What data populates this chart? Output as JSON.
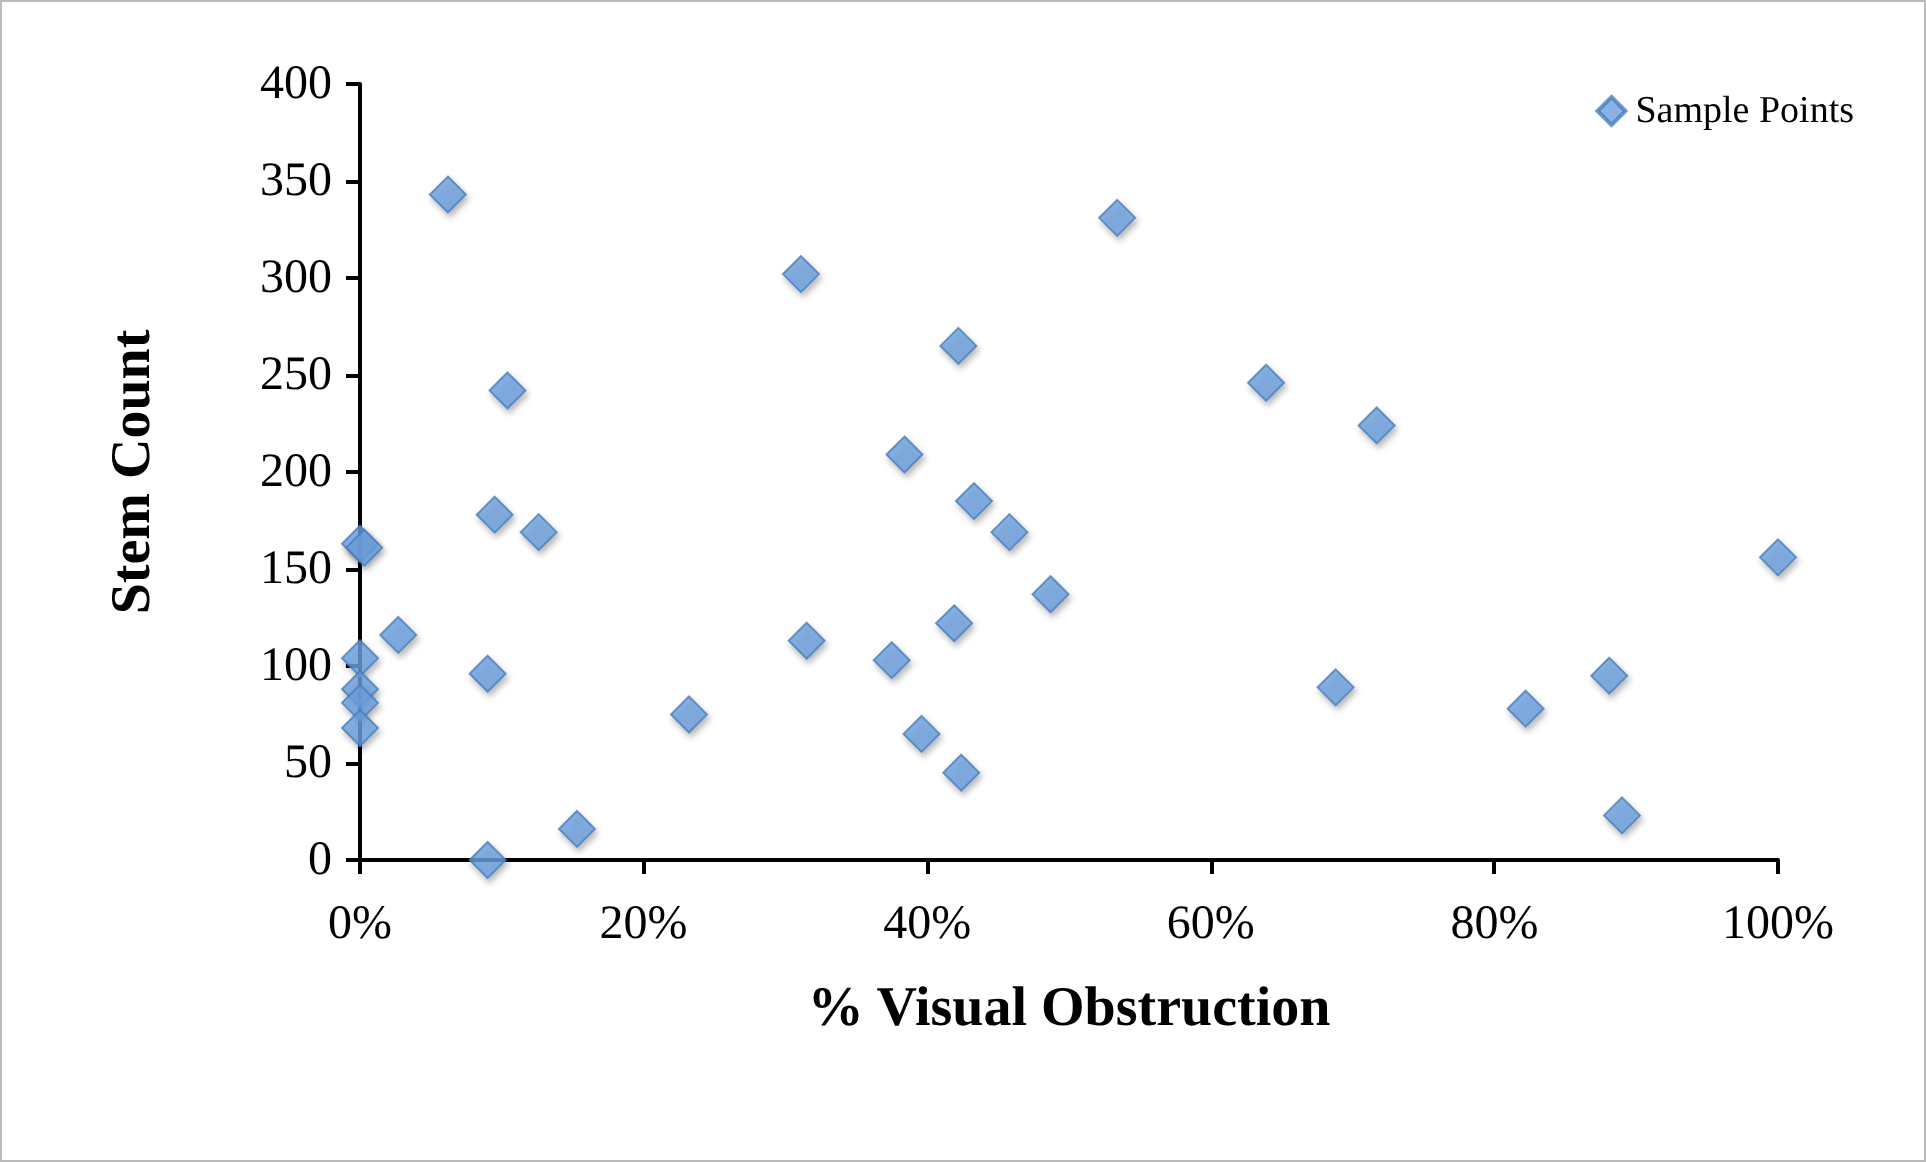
{
  "chart_data": {
    "type": "scatter",
    "xlabel": "% Visual Obstruction",
    "ylabel": "Stem Count",
    "xlim": [
      0,
      100
    ],
    "xticks": [
      {
        "value": 0,
        "label": "0%"
      },
      {
        "value": 20,
        "label": "20%"
      },
      {
        "value": 40,
        "label": "40%"
      },
      {
        "value": 60,
        "label": "60%"
      },
      {
        "value": 80,
        "label": "80%"
      },
      {
        "value": 100,
        "label": "100%"
      }
    ],
    "ylim": [
      0,
      400
    ],
    "yticks": [
      0,
      50,
      100,
      150,
      200,
      250,
      300,
      350,
      400
    ],
    "grid": false,
    "legend": "top right",
    "marker": "diamond",
    "series": [
      {
        "name": "Sample Points",
        "color": "#6a9fdc",
        "x": [
          6.2,
          31.1,
          42.2,
          10.4,
          38.4,
          43.3,
          9.5,
          12.6,
          45.8,
          0,
          0.3,
          48.7,
          2.7,
          31.5,
          41.9,
          37.5,
          0,
          9.0,
          0,
          0,
          0,
          23.2,
          39.6,
          42.4,
          15.3,
          9.0,
          53.4,
          63.9,
          71.7,
          100,
          68.8,
          82.2,
          88.1,
          89.0
        ],
        "values": [
          343,
          302,
          265,
          242,
          209,
          185,
          178,
          169,
          169,
          163,
          161,
          137,
          116,
          113,
          122,
          103,
          104,
          96,
          88,
          81,
          68,
          75,
          65,
          45,
          16,
          0,
          331,
          246,
          224,
          156,
          89,
          78,
          95,
          23
        ]
      }
    ]
  }
}
